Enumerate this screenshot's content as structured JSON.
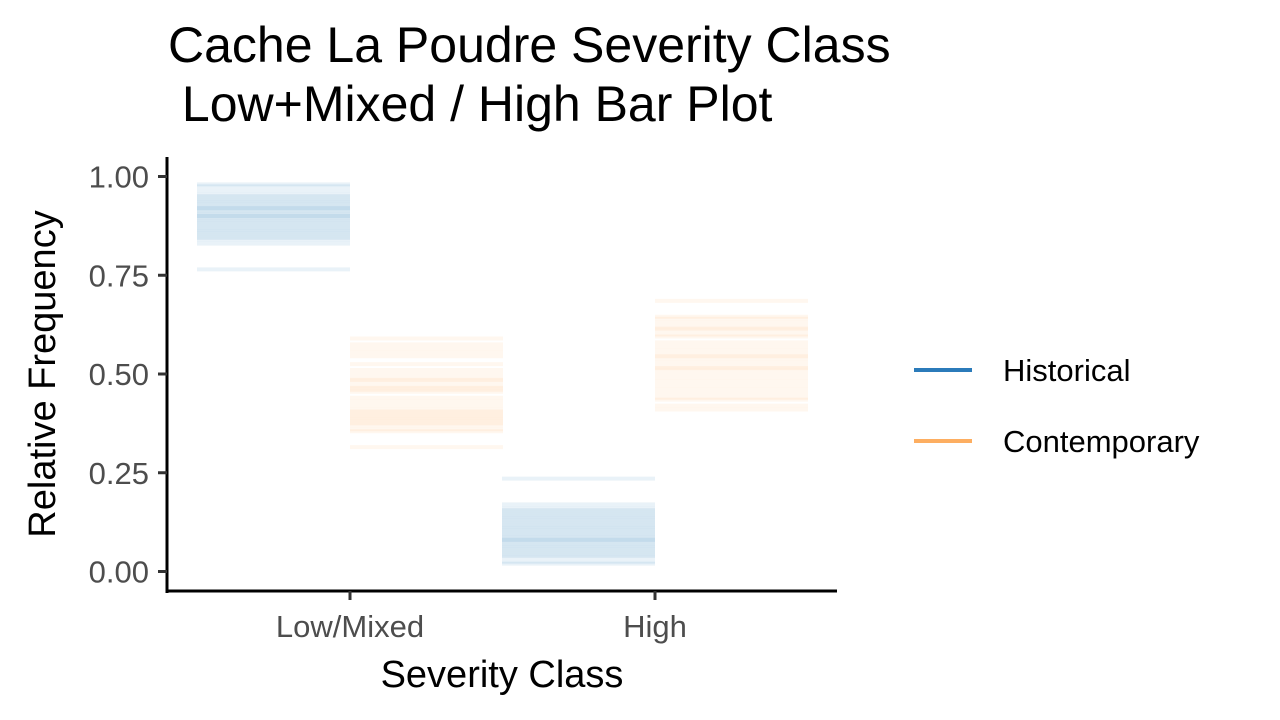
{
  "chart_data": {
    "type": "bar",
    "title_line1": "Cache La Poudre Severity Class",
    "title_line2": " Low+Mixed / High Bar Plot",
    "xlabel": "Severity Class",
    "ylabel": "Relative Frequency",
    "categories": [
      "Low/Mixed",
      "High"
    ],
    "ylim": [
      0,
      1.0
    ],
    "yticks": [
      "0.00",
      "0.25",
      "0.50",
      "0.75",
      "1.00"
    ],
    "ytick_values": [
      0,
      0.25,
      0.5,
      0.75,
      1.0
    ],
    "grid": false,
    "legend_position": "right",
    "series": [
      {
        "name": "Historical",
        "color": "#2b7bba",
        "values_per_category": [
          [
            0.98,
            0.975,
            0.965,
            0.955,
            0.95,
            0.945,
            0.94,
            0.935,
            0.93,
            0.925,
            0.92,
            0.92,
            0.915,
            0.91,
            0.905,
            0.9,
            0.9,
            0.895,
            0.89,
            0.885,
            0.88,
            0.875,
            0.87,
            0.865,
            0.86,
            0.855,
            0.85,
            0.845,
            0.84,
            0.83,
            0.765
          ],
          [
            0.235,
            0.17,
            0.16,
            0.155,
            0.15,
            0.145,
            0.14,
            0.135,
            0.13,
            0.125,
            0.12,
            0.115,
            0.11,
            0.105,
            0.1,
            0.095,
            0.09,
            0.085,
            0.08,
            0.08,
            0.075,
            0.07,
            0.065,
            0.06,
            0.055,
            0.05,
            0.045,
            0.04,
            0.035,
            0.025,
            0.02
          ]
        ]
      },
      {
        "name": "Contemporary",
        "color": "#fdae61",
        "values_per_category": [
          [
            0.59,
            0.575,
            0.565,
            0.555,
            0.545,
            0.525,
            0.51,
            0.5,
            0.49,
            0.485,
            0.48,
            0.47,
            0.465,
            0.46,
            0.455,
            0.44,
            0.43,
            0.42,
            0.41,
            0.405,
            0.4,
            0.395,
            0.39,
            0.385,
            0.38,
            0.375,
            0.37,
            0.36,
            0.355,
            0.315
          ],
          [
            0.685,
            0.645,
            0.64,
            0.63,
            0.62,
            0.615,
            0.61,
            0.6,
            0.595,
            0.58,
            0.57,
            0.56,
            0.55,
            0.545,
            0.54,
            0.53,
            0.52,
            0.515,
            0.51,
            0.5,
            0.49,
            0.48,
            0.47,
            0.46,
            0.45,
            0.44,
            0.435,
            0.42,
            0.41
          ]
        ]
      }
    ]
  }
}
